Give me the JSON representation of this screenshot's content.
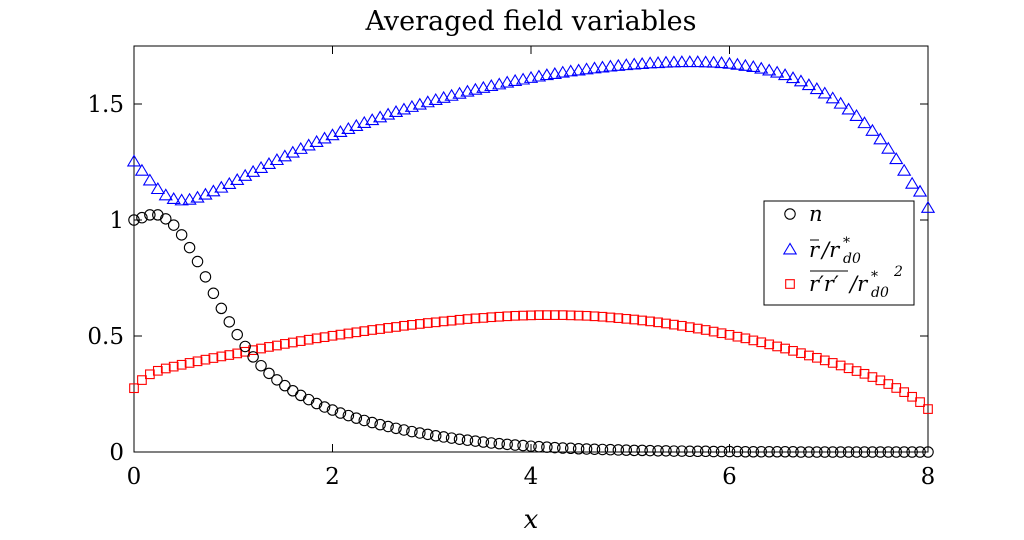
{
  "chart_data": {
    "type": "scatter",
    "title": "Averaged field variables",
    "xlabel": "x",
    "ylabel": "",
    "xlim": [
      0,
      8
    ],
    "ylim": [
      0,
      1.75
    ],
    "xticks": [
      0,
      2,
      4,
      6,
      8
    ],
    "yticks": [
      0,
      0.5,
      1,
      1.5
    ],
    "xtick_labels": [
      "0",
      "2",
      "4",
      "6",
      "8"
    ],
    "ytick_labels": [
      "0",
      "0.5",
      "1",
      "1.5"
    ],
    "grid": false,
    "legend_position": "right",
    "x": [
      0,
      0.08,
      0.16,
      0.24,
      0.32,
      0.4,
      0.48,
      0.56,
      0.64,
      0.72,
      0.8,
      0.88,
      0.96,
      1.04,
      1.12,
      1.2,
      1.28,
      1.36,
      1.44,
      1.52,
      1.6,
      1.68,
      1.76,
      1.84,
      1.92,
      2.0,
      2.08,
      2.16,
      2.24,
      2.32,
      2.4,
      2.48,
      2.56,
      2.64,
      2.72,
      2.8,
      2.88,
      2.96,
      3.04,
      3.12,
      3.2,
      3.28,
      3.36,
      3.44,
      3.52,
      3.6,
      3.68,
      3.76,
      3.84,
      3.92,
      4.0,
      4.08,
      4.16,
      4.24,
      4.32,
      4.4,
      4.48,
      4.56,
      4.64,
      4.72,
      4.8,
      4.88,
      4.96,
      5.04,
      5.12,
      5.2,
      5.28,
      5.36,
      5.44,
      5.52,
      5.6,
      5.68,
      5.76,
      5.84,
      5.92,
      6.0,
      6.08,
      6.16,
      6.24,
      6.32,
      6.4,
      6.48,
      6.56,
      6.64,
      6.72,
      6.8,
      6.88,
      6.96,
      7.04,
      7.12,
      7.2,
      7.28,
      7.36,
      7.44,
      7.52,
      7.6,
      7.68,
      7.76,
      7.84,
      7.92,
      8.0
    ],
    "series": [
      {
        "name": "n",
        "marker": "circle",
        "color": "#000000",
        "values": [
          1.0,
          1.01,
          1.022,
          1.022,
          1.005,
          0.978,
          0.936,
          0.881,
          0.821,
          0.755,
          0.684,
          0.619,
          0.561,
          0.506,
          0.455,
          0.41,
          0.372,
          0.339,
          0.311,
          0.286,
          0.264,
          0.244,
          0.226,
          0.209,
          0.194,
          0.181,
          0.168,
          0.157,
          0.146,
          0.136,
          0.127,
          0.118,
          0.11,
          0.102,
          0.095,
          0.088,
          0.082,
          0.076,
          0.07,
          0.065,
          0.06,
          0.055,
          0.051,
          0.047,
          0.043,
          0.039,
          0.036,
          0.033,
          0.03,
          0.028,
          0.025,
          0.023,
          0.021,
          0.019,
          0.017,
          0.016,
          0.014,
          0.013,
          0.012,
          0.011,
          0.01,
          0.009,
          0.008,
          0.007,
          0.007,
          0.006,
          0.005,
          0.005,
          0.004,
          0.004,
          0.003,
          0.003,
          0.003,
          0.002,
          0.002,
          0.002,
          0.002,
          0.001,
          0.001,
          0.001,
          0.001,
          0.001,
          0.001,
          0.001,
          0.0,
          0.0,
          0.0,
          0.0,
          0.0,
          0.0,
          0.0,
          0.0,
          0.0,
          0.0,
          0.0,
          0.0,
          0.0,
          0.0,
          0.0,
          0.0,
          0.0
        ]
      },
      {
        "name": "r̄/r*d0",
        "marker": "triangle",
        "color": "#0000ff",
        "values": [
          1.25,
          1.21,
          1.168,
          1.131,
          1.104,
          1.088,
          1.082,
          1.085,
          1.094,
          1.107,
          1.121,
          1.137,
          1.153,
          1.17,
          1.188,
          1.205,
          1.222,
          1.239,
          1.256,
          1.272,
          1.288,
          1.304,
          1.319,
          1.334,
          1.349,
          1.363,
          1.377,
          1.39,
          1.403,
          1.416,
          1.428,
          1.44,
          1.452,
          1.463,
          1.474,
          1.485,
          1.495,
          1.505,
          1.515,
          1.524,
          1.533,
          1.542,
          1.551,
          1.559,
          1.567,
          1.575,
          1.582,
          1.59,
          1.597,
          1.603,
          1.61,
          1.616,
          1.622,
          1.627,
          1.633,
          1.638,
          1.642,
          1.647,
          1.651,
          1.655,
          1.659,
          1.662,
          1.665,
          1.668,
          1.67,
          1.673,
          1.674,
          1.676,
          1.677,
          1.678,
          1.678,
          1.678,
          1.677,
          1.676,
          1.674,
          1.671,
          1.667,
          1.662,
          1.657,
          1.65,
          1.642,
          1.633,
          1.622,
          1.609,
          1.595,
          1.579,
          1.562,
          1.543,
          1.522,
          1.499,
          1.474,
          1.446,
          1.415,
          1.382,
          1.345,
          1.305,
          1.26,
          1.21,
          1.154,
          1.12,
          1.05
        ]
      },
      {
        "name": "r'r'/r*d0²",
        "marker": "square",
        "color": "#ff0000",
        "values": [
          0.275,
          0.31,
          0.335,
          0.35,
          0.36,
          0.368,
          0.376,
          0.384,
          0.391,
          0.398,
          0.405,
          0.412,
          0.418,
          0.425,
          0.432,
          0.439,
          0.446,
          0.453,
          0.459,
          0.466,
          0.472,
          0.478,
          0.484,
          0.49,
          0.495,
          0.501,
          0.506,
          0.511,
          0.516,
          0.521,
          0.526,
          0.53,
          0.535,
          0.539,
          0.544,
          0.548,
          0.552,
          0.556,
          0.559,
          0.563,
          0.566,
          0.57,
          0.573,
          0.576,
          0.578,
          0.581,
          0.583,
          0.585,
          0.587,
          0.588,
          0.589,
          0.59,
          0.59,
          0.59,
          0.59,
          0.589,
          0.588,
          0.587,
          0.585,
          0.583,
          0.58,
          0.577,
          0.574,
          0.571,
          0.567,
          0.563,
          0.559,
          0.554,
          0.549,
          0.544,
          0.538,
          0.532,
          0.526,
          0.519,
          0.512,
          0.505,
          0.497,
          0.49,
          0.481,
          0.473,
          0.464,
          0.455,
          0.446,
          0.436,
          0.426,
          0.416,
          0.406,
          0.395,
          0.384,
          0.373,
          0.361,
          0.349,
          0.337,
          0.323,
          0.309,
          0.293,
          0.276,
          0.258,
          0.238,
          0.215,
          0.185
        ]
      }
    ]
  }
}
